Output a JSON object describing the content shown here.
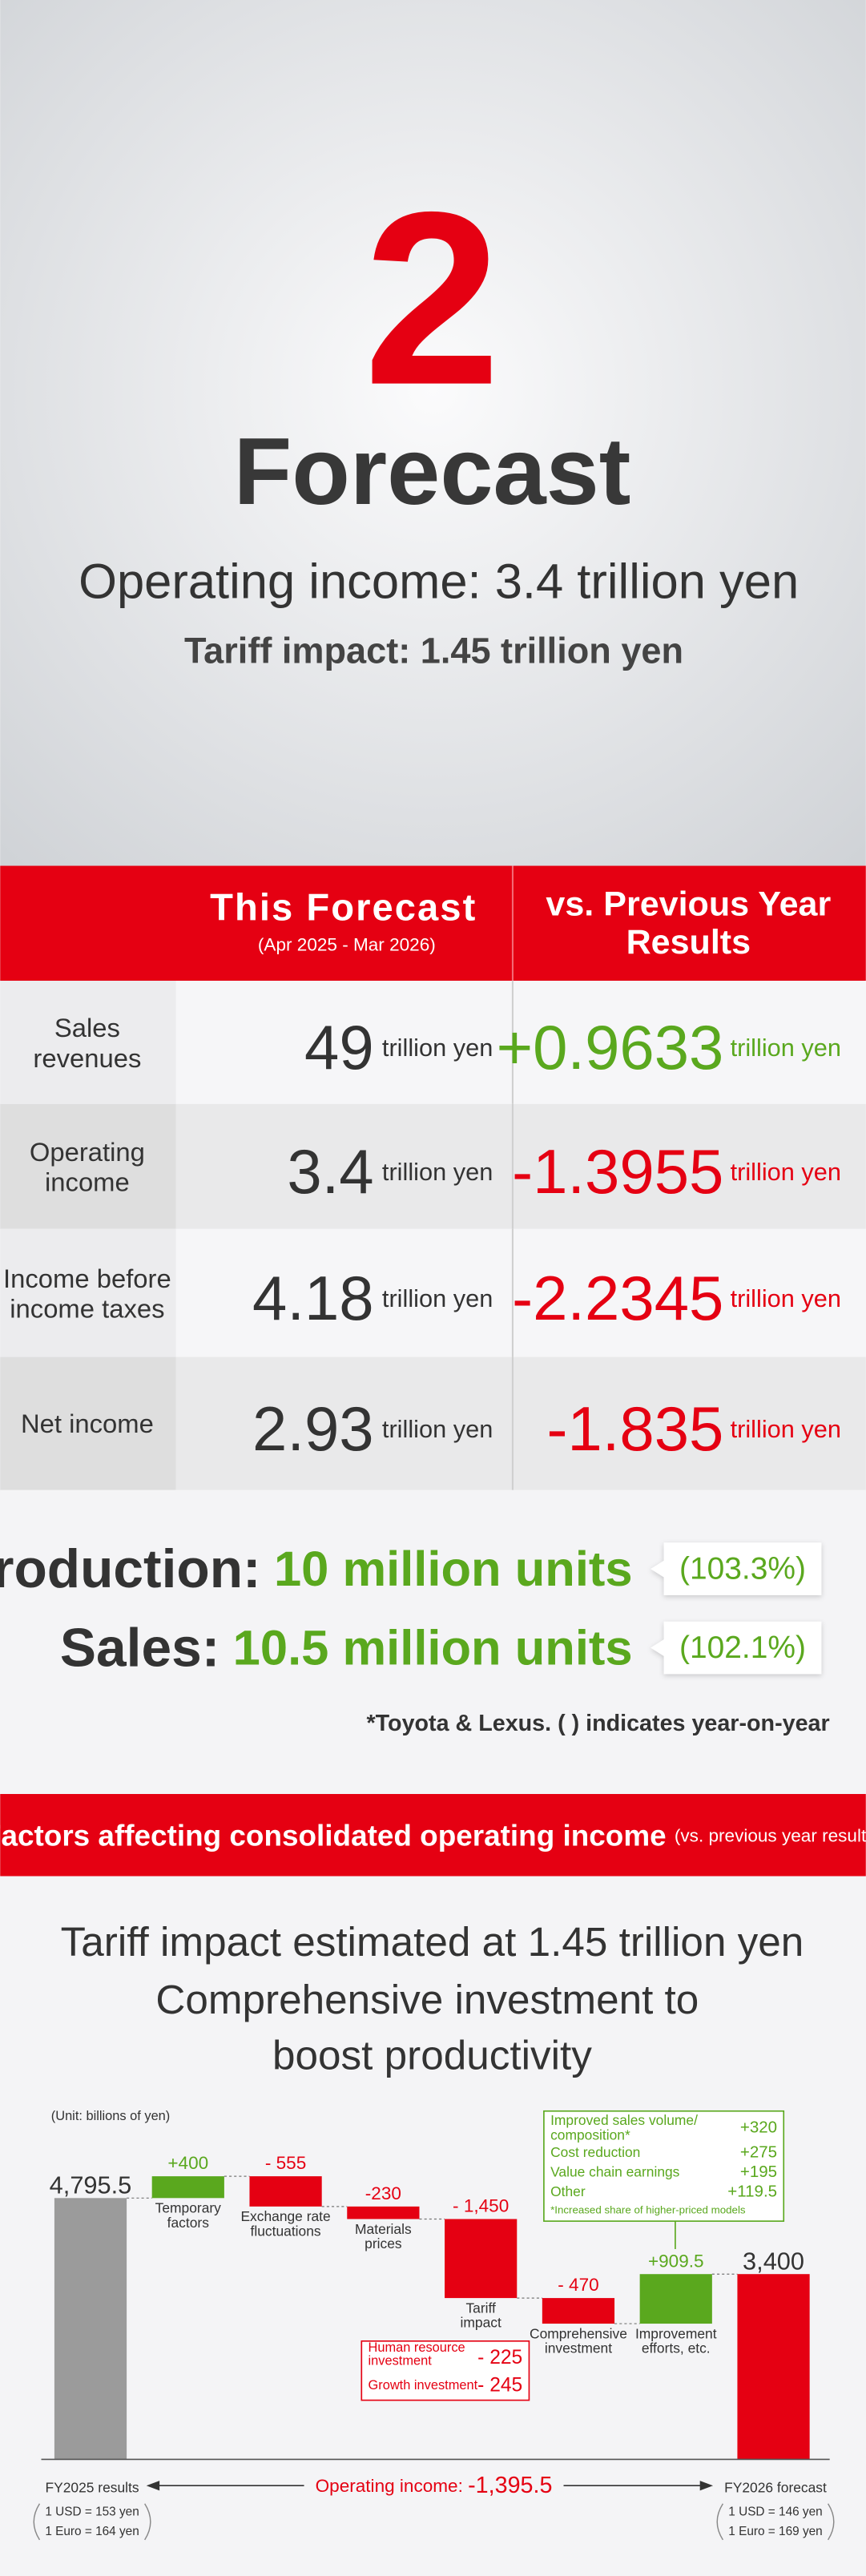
{
  "header": {
    "number": "2",
    "title": "Forecast",
    "operating_income": "Operating income: 3.4 trillion yen",
    "tariff_impact": "Tariff impact: 1.45 trillion yen"
  },
  "table": {
    "columns": [
      "This Forecast",
      "vs. Previous Year\nResults"
    ],
    "period": "(Apr 2025 - Mar 2026)",
    "unit": "trillion yen",
    "rows": [
      [
        "Sales\nrevenues",
        "49",
        "+0.9633"
      ],
      [
        "Operating\nincome",
        "3.4",
        "-1.3955"
      ],
      [
        "Income before\nincome taxes",
        "4.18",
        "-2.2345"
      ],
      [
        "Net income",
        "2.93",
        "-1.835"
      ]
    ]
  },
  "volume": {
    "items": [
      {
        "label": "Production:",
        "value": "10 million units",
        "yoy": "(103.3%)"
      },
      {
        "label": "Sales:",
        "value": "10.5 million units",
        "yoy": "(102.1%)"
      }
    ],
    "note": "*Toyota & Lexus. (   ) indicates year-on-year"
  },
  "factors": {
    "banner": "Factors affecting consolidated operating income",
    "banner_note": "(vs. previous year results)",
    "headline": [
      "Tariff impact estimated at 1.45 trillion yen",
      "Comprehensive investment to",
      "boost productivity"
    ]
  },
  "chart_data": {
    "type": "waterfall",
    "unit_label": "(Unit: billions of yen)",
    "categories": [
      "FY2025 results",
      "Temporary\nfactors",
      "Exchange rate\nfluctuations",
      "Materials\nprices",
      "Tariff\nimpact",
      "Comprehensive\ninvestment",
      "Improvement\nefforts, etc.",
      "FY2026 forecast"
    ],
    "values": [
      4795.5,
      400,
      -555,
      -230,
      -1450,
      -470,
      909.5,
      3400
    ],
    "value_labels": [
      "4,795.5",
      "+400",
      "- 555",
      "-230",
      "- 1,450",
      "- 470",
      "+909.5",
      "3,400"
    ],
    "colors": [
      "#9b9b9b",
      "#5aa81e",
      "#e50012",
      "#e50012",
      "#e50012",
      "#e50012",
      "#5aa81e",
      "#e50012"
    ],
    "ylim": [
      0,
      6000
    ],
    "investment_breakdown": [
      {
        "label": "Human resource\ninvestment",
        "value": "- 225"
      },
      {
        "label": "Growth investment",
        "value": "- 245"
      }
    ],
    "improvement_breakdown": [
      {
        "label": "Improved sales volume/\ncomposition*",
        "value": "+320"
      },
      {
        "label": "Cost reduction",
        "value": "+275"
      },
      {
        "label": "Value chain earnings",
        "value": "+195"
      },
      {
        "label": "Other",
        "value": "+119.5"
      }
    ],
    "improvement_note": "*Increased share of higher-priced models",
    "bottom_label": "Operating income: ",
    "bottom_value": "-1,395.5",
    "rates": [
      [
        "1 USD = 153 yen",
        "1 Euro = 164 yen"
      ],
      [
        "1 USD = 146 yen",
        "1 Euro = 169 yen"
      ]
    ]
  }
}
